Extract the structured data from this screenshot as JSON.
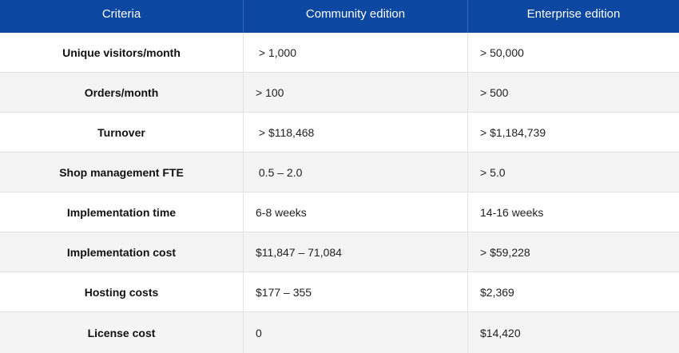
{
  "header": {
    "criteria": "Criteria",
    "community": "Community edition",
    "enterprise": "Enterprise edition"
  },
  "colors": {
    "header_bg": "#0c47a1",
    "header_text": "#ffffff",
    "row_alt": "#f4f4f4"
  },
  "rows": [
    {
      "criteria": "Unique visitors/month",
      "community": " > 1,000",
      "enterprise": "> 50,000"
    },
    {
      "criteria": "Orders/month",
      "community": "> 100",
      "enterprise": "> 500"
    },
    {
      "criteria": "Turnover",
      "community": " > $118,468",
      "enterprise": "> $1,184,739"
    },
    {
      "criteria": "Shop management FTE",
      "community": " 0.5 – 2.0",
      "enterprise": "> 5.0"
    },
    {
      "criteria": "Implementation time",
      "community": "6-8 weeks",
      "enterprise": "14-16 weeks"
    },
    {
      "criteria": "Implementation cost",
      "community": "$11,847 – 71,084",
      "enterprise": "> $59,228"
    },
    {
      "criteria": "Hosting costs",
      "community": "$177 – 355",
      "enterprise": "$2,369"
    },
    {
      "criteria": "License cost",
      "community": "0",
      "enterprise": "$14,420"
    }
  ]
}
